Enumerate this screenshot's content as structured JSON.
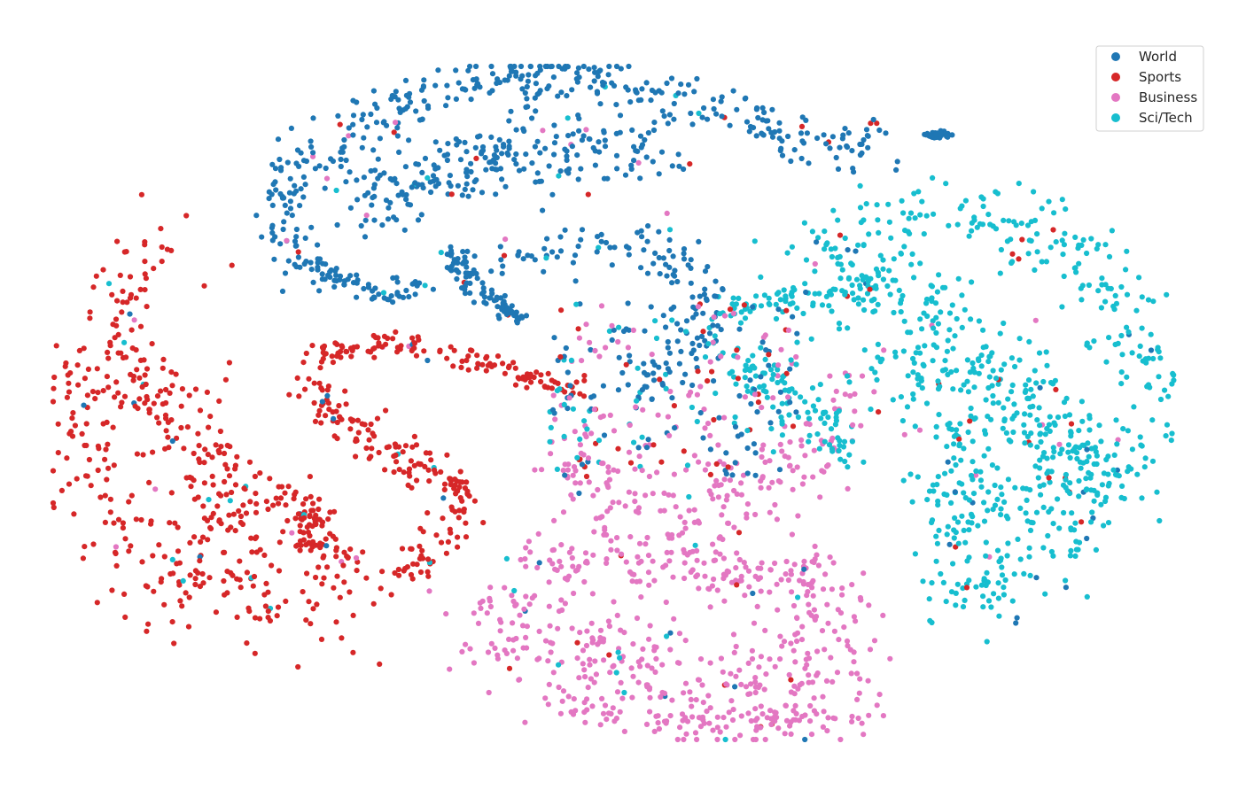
{
  "chart_data": {
    "type": "scatter",
    "title": "",
    "xlabel": "",
    "ylabel": "",
    "axes_visible": false,
    "grid": false,
    "legend_position": "top-right",
    "series": [
      {
        "name": "World",
        "color": "#1f77b4"
      },
      {
        "name": "Sports",
        "color": "#d62728"
      },
      {
        "name": "Business",
        "color": "#e377c2"
      },
      {
        "name": "Sci/Tech",
        "color": "#17becf"
      }
    ]
  }
}
